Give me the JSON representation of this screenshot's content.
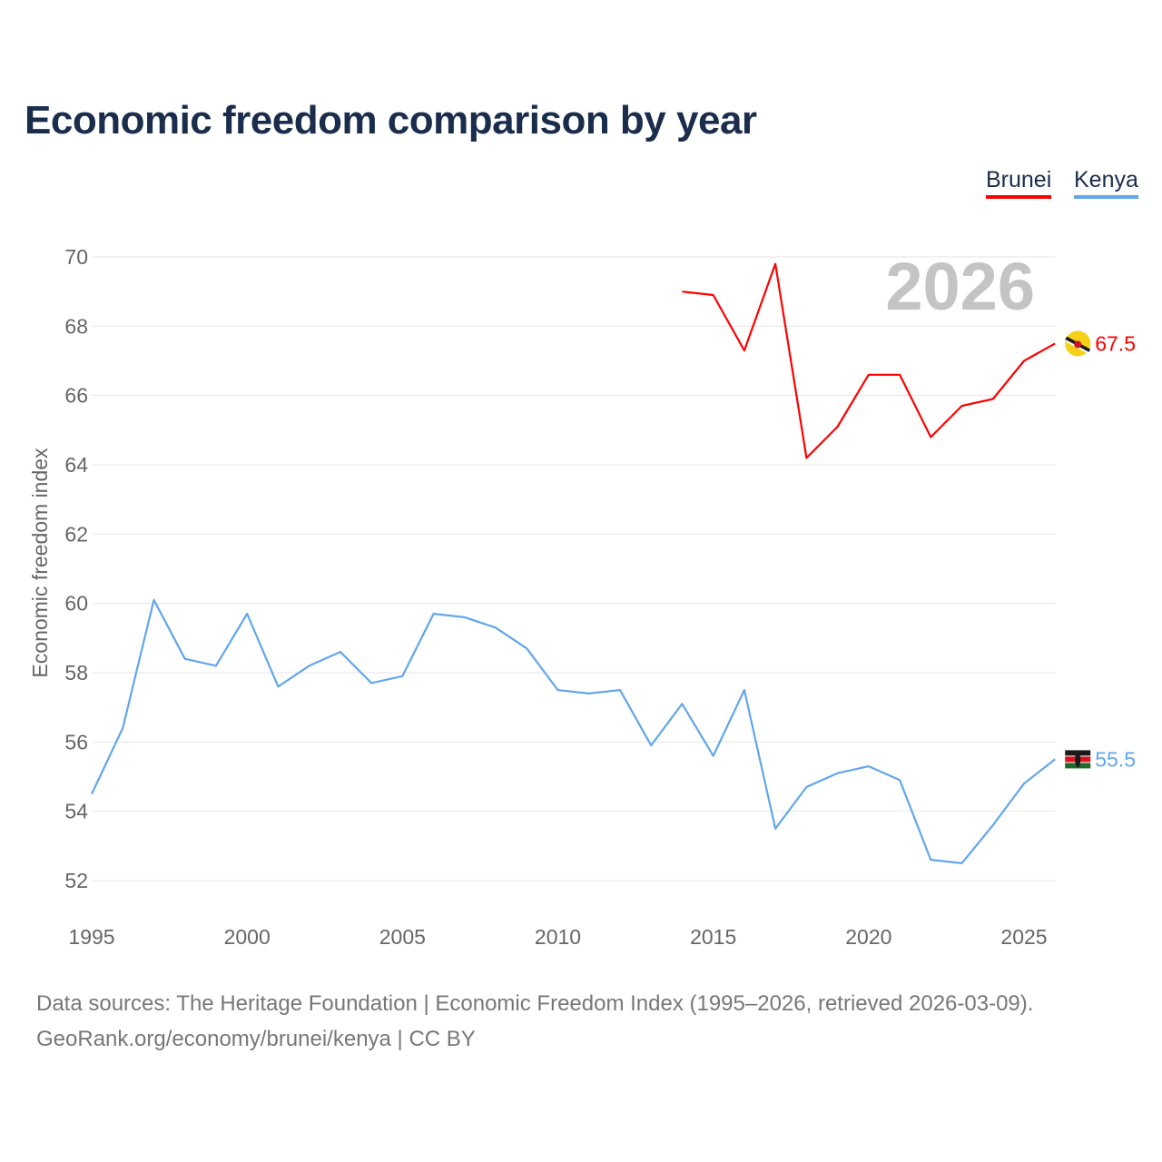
{
  "chart_data": {
    "type": "line",
    "title": "Economic freedom comparison by year",
    "xlabel": "",
    "ylabel": "Economic freedom index",
    "xlim": [
      1995,
      2026
    ],
    "ylim": [
      51.5,
      70.5
    ],
    "xticks": [
      1995,
      2000,
      2005,
      2010,
      2015,
      2020,
      2025
    ],
    "yticks": [
      52,
      54,
      56,
      58,
      60,
      62,
      64,
      66,
      68,
      70
    ],
    "grid": true,
    "legend_position": "top-right",
    "year_label": "2026",
    "series": [
      {
        "name": "Brunei",
        "color": "#ff0000",
        "end_label": "67.5",
        "x": [
          2014,
          2015,
          2016,
          2017,
          2018,
          2019,
          2020,
          2021,
          2022,
          2023,
          2024,
          2025,
          2026
        ],
        "values": [
          69.0,
          68.9,
          67.3,
          69.8,
          64.2,
          65.1,
          66.6,
          66.6,
          64.8,
          65.7,
          65.9,
          67.0,
          67.5
        ]
      },
      {
        "name": "Kenya",
        "color": "#62a6ea",
        "end_label": "55.5",
        "x": [
          1995,
          1996,
          1997,
          1998,
          1999,
          2000,
          2001,
          2002,
          2003,
          2004,
          2005,
          2006,
          2007,
          2008,
          2009,
          2010,
          2011,
          2012,
          2013,
          2014,
          2015,
          2016,
          2017,
          2018,
          2019,
          2020,
          2021,
          2022,
          2023,
          2024,
          2025,
          2026
        ],
        "values": [
          54.5,
          56.4,
          60.1,
          58.4,
          58.2,
          59.7,
          57.6,
          58.2,
          58.6,
          57.7,
          57.9,
          59.7,
          59.6,
          59.3,
          58.7,
          57.5,
          57.4,
          57.5,
          55.9,
          57.1,
          55.6,
          57.5,
          53.5,
          54.7,
          55.1,
          55.3,
          54.9,
          52.6,
          52.5,
          53.6,
          54.8,
          55.5
        ]
      }
    ]
  },
  "footer": {
    "line1": "Data sources: The Heritage Foundation | Economic Freedom Index (1995–2026, retrieved 2026-03-09).",
    "line2": "GeoRank.org/economy/brunei/kenya | CC BY"
  }
}
